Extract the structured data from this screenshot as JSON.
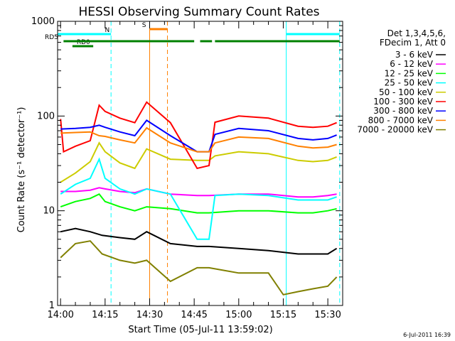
{
  "chart_data": {
    "type": "line",
    "title": "HESSI Observing Summary Count Rates",
    "xlabel": "Start Time (05-Jul-11 13:59:02)",
    "ylabel": "Count Rate (s⁻¹ detector⁻¹)",
    "yscale": "log",
    "ylim": [
      1,
      1000
    ],
    "xlim": [
      "13:59",
      "15:35"
    ],
    "x_ticks": [
      "14:00",
      "14:15",
      "14:30",
      "14:45",
      "15:00",
      "15:15",
      "15:30"
    ],
    "y_ticks": [
      "1",
      "10",
      "100",
      "1000"
    ],
    "legend_header": [
      "Det 1,3,4,5,6,",
      "FDecim 1, Att 0"
    ],
    "legend_placement": "right",
    "series": [
      {
        "name": "3 - 6 keV",
        "color": "#000000",
        "points": [
          [
            "14:00",
            6
          ],
          [
            "14:05",
            6.5
          ],
          [
            "14:10",
            6
          ],
          [
            "14:14",
            5.5
          ],
          [
            "14:20",
            5.2
          ],
          [
            "14:25",
            5
          ],
          [
            "14:29",
            6
          ],
          [
            "14:37",
            4.5
          ],
          [
            "14:46",
            4.2
          ],
          [
            "14:50",
            4.2
          ],
          [
            "15:00",
            4
          ],
          [
            "15:10",
            3.8
          ],
          [
            "15:20",
            3.5
          ],
          [
            "15:25",
            3.5
          ],
          [
            "15:30",
            3.5
          ],
          [
            "15:33",
            4
          ]
        ]
      },
      {
        "name": "6 - 12 keV",
        "color": "#ff00ff",
        "points": [
          [
            "14:00",
            16
          ],
          [
            "14:05",
            16
          ],
          [
            "14:10",
            16.5
          ],
          [
            "14:13",
            17.5
          ],
          [
            "14:15",
            17
          ],
          [
            "14:20",
            16
          ],
          [
            "14:25",
            15.5
          ],
          [
            "14:29",
            17
          ],
          [
            "14:37",
            15
          ],
          [
            "14:46",
            14.5
          ],
          [
            "14:50",
            14.5
          ],
          [
            "15:00",
            15
          ],
          [
            "15:10",
            15
          ],
          [
            "15:20",
            14
          ],
          [
            "15:25",
            14
          ],
          [
            "15:30",
            14.5
          ],
          [
            "15:33",
            15
          ]
        ]
      },
      {
        "name": "12 - 25 keV",
        "color": "#00ff00",
        "points": [
          [
            "14:00",
            11
          ],
          [
            "14:05",
            12.5
          ],
          [
            "14:10",
            13.5
          ],
          [
            "14:13",
            15
          ],
          [
            "14:15",
            12.5
          ],
          [
            "14:20",
            11
          ],
          [
            "14:25",
            10
          ],
          [
            "14:29",
            11
          ],
          [
            "14:37",
            10.5
          ],
          [
            "14:46",
            9.5
          ],
          [
            "14:50",
            9.5
          ],
          [
            "15:00",
            10
          ],
          [
            "15:10",
            10
          ],
          [
            "15:20",
            9.5
          ],
          [
            "15:25",
            9.5
          ],
          [
            "15:30",
            10
          ],
          [
            "15:33",
            10.5
          ]
        ]
      },
      {
        "name": "25 - 50 keV",
        "color": "#00ffff",
        "points": [
          [
            "14:00",
            15
          ],
          [
            "14:05",
            19
          ],
          [
            "14:10",
            22
          ],
          [
            "14:13",
            35
          ],
          [
            "14:15",
            22
          ],
          [
            "14:20",
            17
          ],
          [
            "14:25",
            15
          ],
          [
            "14:29",
            17
          ],
          [
            "14:37",
            15
          ],
          [
            "14:46",
            5
          ],
          [
            "14:50",
            5
          ],
          [
            "14:52",
            14.5
          ],
          [
            "15:00",
            15
          ],
          [
            "15:10",
            14.5
          ],
          [
            "15:20",
            13
          ],
          [
            "15:25",
            13
          ],
          [
            "15:30",
            13
          ],
          [
            "15:33",
            14
          ]
        ]
      },
      {
        "name": "50 - 100 keV",
        "color": "#cccc00",
        "points": [
          [
            "14:00",
            20
          ],
          [
            "14:05",
            25
          ],
          [
            "14:10",
            33
          ],
          [
            "14:13",
            52
          ],
          [
            "14:15",
            42
          ],
          [
            "14:20",
            32
          ],
          [
            "14:25",
            28
          ],
          [
            "14:29",
            45
          ],
          [
            "14:37",
            35
          ],
          [
            "14:46",
            34
          ],
          [
            "14:50",
            34
          ],
          [
            "14:52",
            38
          ],
          [
            "15:00",
            42
          ],
          [
            "15:10",
            40
          ],
          [
            "15:20",
            34
          ],
          [
            "15:25",
            33
          ],
          [
            "15:30",
            34
          ],
          [
            "15:33",
            37
          ]
        ]
      },
      {
        "name": "100 - 300 keV",
        "color": "#ff0000",
        "points": [
          [
            "14:00",
            93
          ],
          [
            "14:01",
            42
          ],
          [
            "14:05",
            48
          ],
          [
            "14:10",
            55
          ],
          [
            "14:13",
            130
          ],
          [
            "14:15",
            112
          ],
          [
            "14:20",
            95
          ],
          [
            "14:25",
            85
          ],
          [
            "14:29",
            140
          ],
          [
            "14:37",
            85
          ],
          [
            "14:46",
            28
          ],
          [
            "14:50",
            30
          ],
          [
            "14:52",
            86
          ],
          [
            "15:00",
            100
          ],
          [
            "15:10",
            95
          ],
          [
            "15:20",
            78
          ],
          [
            "15:25",
            76
          ],
          [
            "15:30",
            78
          ],
          [
            "15:33",
            85
          ]
        ]
      },
      {
        "name": "300 - 800 keV",
        "color": "#0000ff",
        "points": [
          [
            "14:00",
            73
          ],
          [
            "14:05",
            74
          ],
          [
            "14:10",
            76
          ],
          [
            "14:13",
            80
          ],
          [
            "14:15",
            76
          ],
          [
            "14:20",
            68
          ],
          [
            "14:25",
            62
          ],
          [
            "14:29",
            90
          ],
          [
            "14:37",
            62
          ],
          [
            "14:46",
            42
          ],
          [
            "14:50",
            42
          ],
          [
            "14:52",
            64
          ],
          [
            "15:00",
            74
          ],
          [
            "15:10",
            70
          ],
          [
            "15:20",
            58
          ],
          [
            "15:25",
            56
          ],
          [
            "15:30",
            58
          ],
          [
            "15:33",
            63
          ]
        ]
      },
      {
        "name": "800 - 7000 keV",
        "color": "#ff8000",
        "points": [
          [
            "14:00",
            66
          ],
          [
            "14:05",
            67
          ],
          [
            "14:10",
            68
          ],
          [
            "14:13",
            62
          ],
          [
            "14:15",
            61
          ],
          [
            "14:20",
            56
          ],
          [
            "14:25",
            52
          ],
          [
            "14:29",
            75
          ],
          [
            "14:37",
            52
          ],
          [
            "14:46",
            42
          ],
          [
            "14:50",
            42
          ],
          [
            "14:52",
            52
          ],
          [
            "15:00",
            60
          ],
          [
            "15:10",
            58
          ],
          [
            "15:20",
            48
          ],
          [
            "15:25",
            46
          ],
          [
            "15:30",
            47
          ],
          [
            "15:33",
            50
          ]
        ]
      },
      {
        "name": "7000 - 20000 keV",
        "color": "#808000",
        "points": [
          [
            "14:00",
            3.2
          ],
          [
            "14:05",
            4.5
          ],
          [
            "14:10",
            4.8
          ],
          [
            "14:14",
            3.5
          ],
          [
            "14:20",
            3
          ],
          [
            "14:25",
            2.8
          ],
          [
            "14:29",
            3
          ],
          [
            "14:37",
            1.8
          ],
          [
            "14:46",
            2.5
          ],
          [
            "14:50",
            2.5
          ],
          [
            "15:00",
            2.2
          ],
          [
            "15:10",
            2.2
          ],
          [
            "15:15",
            1.3
          ],
          [
            "15:20",
            1.4
          ],
          [
            "15:25",
            1.5
          ],
          [
            "15:30",
            1.6
          ],
          [
            "15:33",
            2
          ]
        ]
      }
    ],
    "vertical_markers": [
      {
        "time": "14:17",
        "color": "#00ffff",
        "style": "dashed"
      },
      {
        "time": "14:30",
        "color": "#ff8000",
        "style": "solid"
      },
      {
        "time": "14:36",
        "color": "#ff8000",
        "style": "dashed"
      },
      {
        "time": "15:16",
        "color": "#00ffff",
        "style": "solid"
      },
      {
        "time": "15:34",
        "color": "#00ffff",
        "style": "dashed"
      }
    ],
    "annotation_bars": [
      {
        "label": "N",
        "color": "#00ffff",
        "segments": [
          [
            "13:59",
            "14:17"
          ],
          [
            "15:16",
            "15:34"
          ]
        ]
      },
      {
        "label": "S",
        "color": "#ff8000",
        "segments": [
          [
            "14:30",
            "14:36"
          ]
        ]
      },
      {
        "label": "RD0",
        "color": "#008000",
        "segments": [
          [
            "14:04",
            "14:11"
          ]
        ]
      },
      {
        "label": "RD5",
        "color": "#008000",
        "segments": [
          [
            "14:01",
            "14:16"
          ],
          [
            "14:16",
            "14:45"
          ],
          [
            "14:47",
            "14:51"
          ],
          [
            "14:52",
            "15:34"
          ]
        ]
      }
    ],
    "timestamp": "6-Jul-2011 16:39"
  }
}
